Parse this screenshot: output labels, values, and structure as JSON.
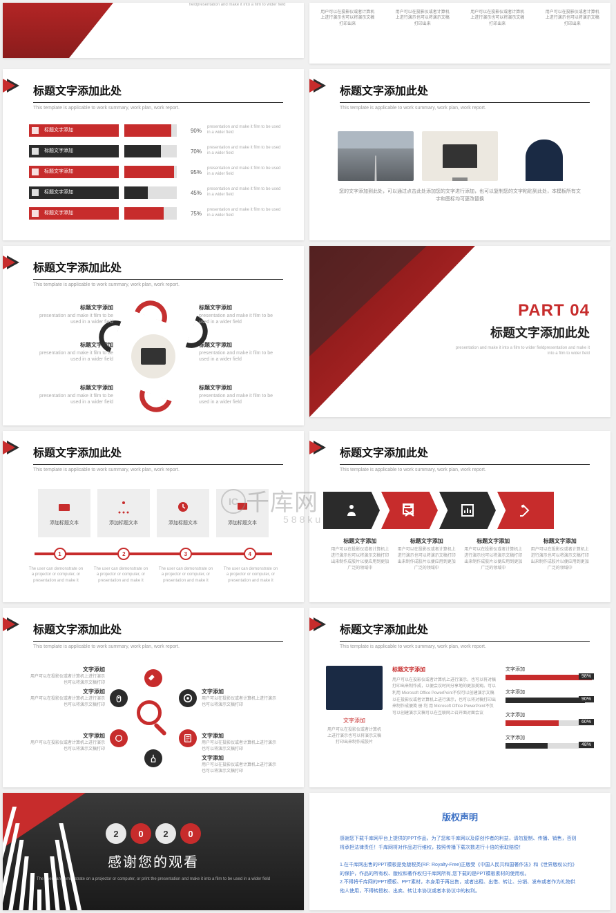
{
  "colors": {
    "red": "#c72c2c",
    "dark": "#2b2b2b",
    "grey": "#9aa0a6",
    "lightgrey": "#e0e0e0"
  },
  "common": {
    "title": "标题文字添加此处",
    "subtitle": "This template is applicable to work summary, work plan, work report.",
    "itemTitle": "标题文字添加",
    "itemBody": "presentation and make it film to be used in a wider field",
    "topNote": "fieldpresentation and make it into a film to wider field",
    "userNote": "用户可以在投影仪或者计算机上进行演示也可以将演示文稿打印出来"
  },
  "bars": [
    {
      "label": "标题文字添加",
      "pct": 90,
      "color": "#c72c2c"
    },
    {
      "label": "标题文字添加",
      "pct": 70,
      "color": "#2b2b2b"
    },
    {
      "label": "标题文字添加",
      "pct": 95,
      "color": "#c72c2c"
    },
    {
      "label": "标题文字添加",
      "pct": 45,
      "color": "#2b2b2b"
    },
    {
      "label": "标题文字添加",
      "pct": 75,
      "color": "#c72c2c"
    }
  ],
  "imgCaption": "您的文字添加到此处，可以通过点击此处添加您的文字进行添加，也可以复制您的文字粘贴到此处，本模板所有文字和图标均可更改替换",
  "part04": {
    "label": "PART 04",
    "title": "标题文字添加此处",
    "sub": "presentation and make it into a film to wider fieldpresentation and make it into a film to wider field"
  },
  "boxes": [
    "添加标题文本",
    "添加标题文本",
    "添加标题文本",
    "添加标题文本"
  ],
  "timeline": {
    "steps": [
      1,
      2,
      3,
      4
    ],
    "text": "The user can demonstrate on a projector or computer, or presentation and make it"
  },
  "arrows": [
    {
      "color": "#2b2b2b",
      "title": "标题文字添加"
    },
    {
      "color": "#c72c2c",
      "title": "标题文字添加"
    },
    {
      "color": "#2b2b2b",
      "title": "标题文字添加"
    },
    {
      "color": "#c72c2c",
      "title": "标题文字添加"
    }
  ],
  "arrowBody": "用户可以在投影仪或者计算机上进行演示也可以将演示文稿打印出来制作成胶片以便应用到更加广泛的领域中",
  "wheel": [
    {
      "angle": 270,
      "color": "#c72c2c"
    },
    {
      "angle": 330,
      "color": "#2b2b2b"
    },
    {
      "angle": 30,
      "color": "#c72c2c"
    },
    {
      "angle": 90,
      "color": "#2b2b2b"
    },
    {
      "angle": 150,
      "color": "#c72c2c"
    },
    {
      "angle": 210,
      "color": "#2b2b2b"
    }
  ],
  "wheelLabel": {
    "title": "文字添加",
    "body": "用户可以在投影仪或者计算机上进行演示也可以将演示文稿打印"
  },
  "detail": {
    "hl": "标题文字添加",
    "body": "用户可以在投影仪或者计算机上进行演示，也可以将对稿打印出来制作成，以便会议时间分享地的更加美观。可以利用 Microsoft Office PowerPoint不仅可以创建演示文稿以在投影仪或者计算机上进行演示，也可以将对稿打印出来制作成便笺 册 利 用 Microsoft Office PowerPoint不仅可以创建演示文稿可以在互联网上召开面对面会议",
    "cap": "文字添加",
    "capBody": "用户可以在投影仪或者计算机上进行演示也可以将演示文稿打印出来制作成胶片",
    "minibars": [
      {
        "label": "文字添加",
        "pct": 98,
        "color": "#c72c2c"
      },
      {
        "label": "文字添加",
        "pct": 90,
        "color": "#2b2b2b"
      },
      {
        "label": "文字添加",
        "pct": 60,
        "color": "#c72c2c"
      },
      {
        "label": "文字添加",
        "pct": 48,
        "color": "#2b2b2b"
      }
    ]
  },
  "thanks": {
    "year": [
      "2",
      "0",
      "2",
      "0"
    ],
    "main": "感谢您的观看",
    "sub": "The user can demonstrate on a projector or computer, or print the presentation and make it into a film to be used in a wider field"
  },
  "copyright": {
    "title": "版权声明",
    "p1": "感谢您下载千库网平台上提供的PPT作品，为了您和千库网以及原创作者的利益，请勿复制、传播、销售，否则将承担法律责任！千库网将对作品进行维权，按照传播下载次数进行十倍的索取赔偿！",
    "p2": "1.在千库网出售的PPT模板是免版税类(RF: Royalty-Free)正版受《中国人民共和国著作法》和《世界版权公约》的保护，作品的所有权、版权和著作权归千库网所有,您下载的是PPT模板素材的使用权。",
    "p3": "2.不得将千库网的PPT模板、PPT素材，本身用于再出售，或者出租、出借、转让、分销、发布或者作为礼物供他人使用，不得转授权、出卖、转让本协议或者本协议中的权利。"
  },
  "watermark": {
    "main": "千库网",
    "sub": "588ku",
    "ic": "IC"
  }
}
